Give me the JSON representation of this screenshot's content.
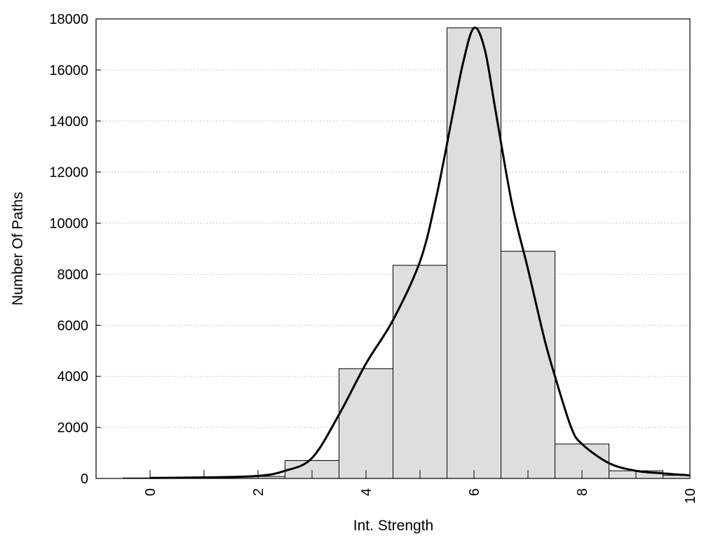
{
  "chart_data": {
    "type": "bar",
    "xlabel": "Int. Strength",
    "ylabel": "Number Of Paths",
    "xlim": [
      -1,
      10
    ],
    "ylim": [
      0,
      18000
    ],
    "x_ticks": [
      0,
      2,
      4,
      6,
      8,
      10
    ],
    "y_ticks": [
      0,
      2000,
      4000,
      6000,
      8000,
      10000,
      12000,
      14000,
      16000,
      18000
    ],
    "grid": "horizontal dotted",
    "bars": {
      "bin_width": 1,
      "centers": [
        0,
        1,
        2,
        3,
        4,
        5,
        6,
        7,
        8,
        9,
        10
      ],
      "values": [
        20,
        30,
        80,
        700,
        4300,
        8350,
        17650,
        8900,
        1350,
        300,
        120
      ],
      "fill": "#dedede",
      "stroke": "#000000"
    },
    "curve": {
      "x": [
        0,
        1,
        2,
        2.5,
        3,
        3.5,
        4,
        4.5,
        5,
        5.3,
        5.6,
        5.8,
        6,
        6.2,
        6.4,
        6.7,
        7,
        7.3,
        7.5,
        7.8,
        8,
        8.5,
        9,
        9.5,
        10
      ],
      "y": [
        20,
        40,
        100,
        300,
        800,
        2500,
        4500,
        6200,
        8500,
        11000,
        14200,
        16300,
        17650,
        16800,
        14400,
        10800,
        8200,
        5500,
        4000,
        2000,
        1350,
        600,
        300,
        200,
        120
      ],
      "color": "#000000"
    }
  }
}
